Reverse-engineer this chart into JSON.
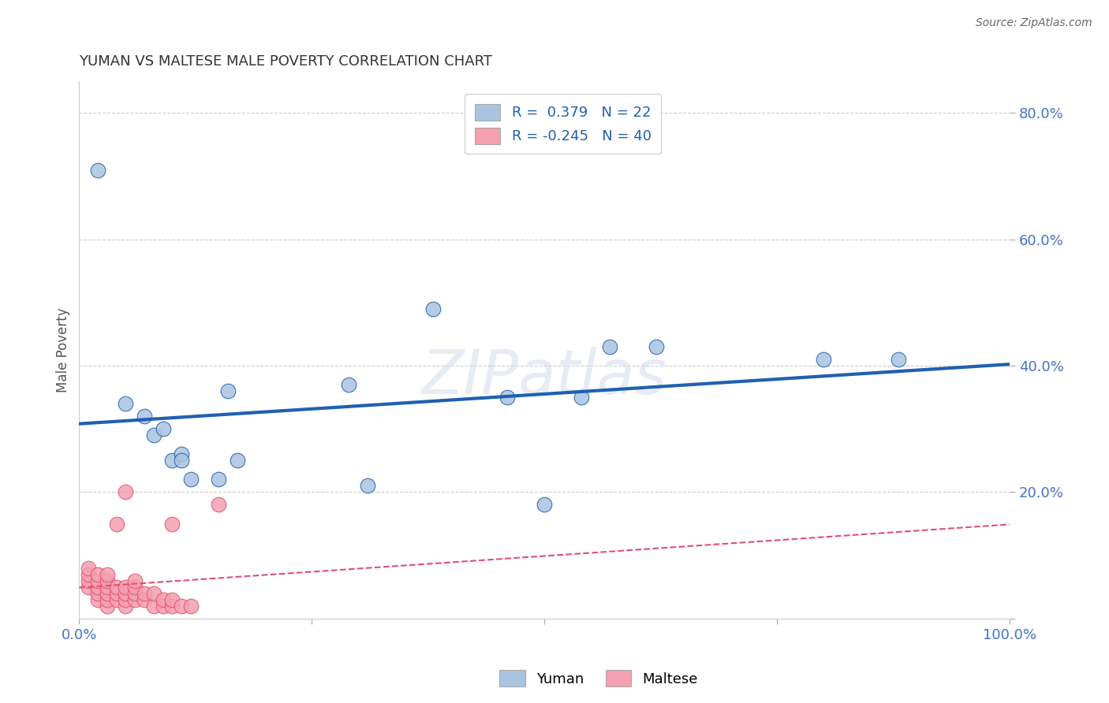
{
  "title": "YUMAN VS MALTESE MALE POVERTY CORRELATION CHART",
  "source": "Source: ZipAtlas.com",
  "ylabel": "Male Poverty",
  "xlim": [
    0.0,
    1.0
  ],
  "ylim": [
    0.0,
    0.85
  ],
  "xticks": [
    0.0,
    0.25,
    0.5,
    0.75,
    1.0
  ],
  "xticklabels": [
    "0.0%",
    "",
    "",
    "",
    "100.0%"
  ],
  "yticks": [
    0.0,
    0.2,
    0.4,
    0.6,
    0.8
  ],
  "yticklabels": [
    "",
    "20.0%",
    "40.0%",
    "60.0%",
    "80.0%"
  ],
  "yuman_R": 0.379,
  "yuman_N": 22,
  "maltese_R": -0.245,
  "maltese_N": 40,
  "yuman_color": "#a8c4e0",
  "yuman_line_color": "#2060b0",
  "maltese_color": "#f4a0b0",
  "maltese_line_color": "#e05070",
  "background_color": "#ffffff",
  "grid_color": "#cccccc",
  "tick_label_color": "#4472c4",
  "yuman_x": [
    0.02,
    0.05,
    0.07,
    0.08,
    0.09,
    0.1,
    0.11,
    0.11,
    0.12,
    0.15,
    0.16,
    0.17,
    0.29,
    0.31,
    0.38,
    0.46,
    0.5,
    0.54,
    0.57,
    0.62,
    0.8,
    0.88
  ],
  "yuman_y": [
    0.71,
    0.34,
    0.32,
    0.29,
    0.3,
    0.25,
    0.26,
    0.25,
    0.22,
    0.22,
    0.36,
    0.25,
    0.37,
    0.21,
    0.49,
    0.35,
    0.18,
    0.35,
    0.43,
    0.43,
    0.41,
    0.41
  ],
  "maltese_x": [
    0.01,
    0.01,
    0.01,
    0.01,
    0.02,
    0.02,
    0.02,
    0.02,
    0.02,
    0.03,
    0.03,
    0.03,
    0.03,
    0.03,
    0.03,
    0.04,
    0.04,
    0.04,
    0.04,
    0.05,
    0.05,
    0.05,
    0.05,
    0.05,
    0.06,
    0.06,
    0.06,
    0.06,
    0.07,
    0.07,
    0.08,
    0.08,
    0.09,
    0.09,
    0.1,
    0.1,
    0.1,
    0.11,
    0.12,
    0.15
  ],
  "maltese_y": [
    0.05,
    0.06,
    0.07,
    0.08,
    0.03,
    0.04,
    0.05,
    0.06,
    0.07,
    0.02,
    0.03,
    0.04,
    0.05,
    0.06,
    0.07,
    0.03,
    0.04,
    0.05,
    0.15,
    0.02,
    0.03,
    0.04,
    0.05,
    0.2,
    0.03,
    0.04,
    0.05,
    0.06,
    0.03,
    0.04,
    0.02,
    0.04,
    0.02,
    0.03,
    0.02,
    0.03,
    0.15,
    0.02,
    0.02,
    0.18
  ]
}
